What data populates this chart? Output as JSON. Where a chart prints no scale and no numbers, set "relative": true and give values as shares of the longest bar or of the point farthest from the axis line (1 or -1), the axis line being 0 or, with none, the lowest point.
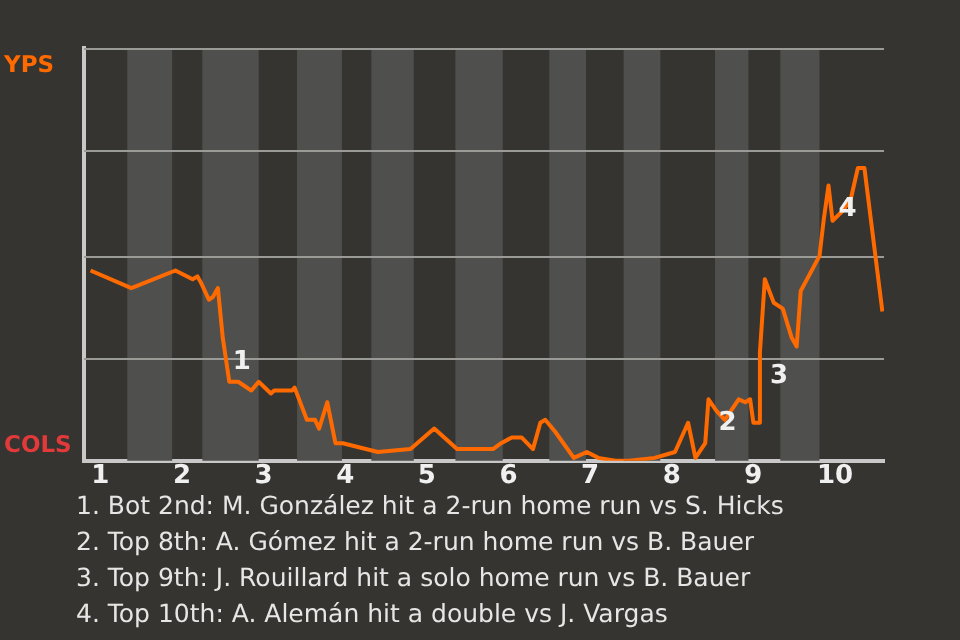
{
  "chart_data": {
    "type": "line",
    "relative": true,
    "xlim": [
      0.8,
      10.6
    ],
    "xticks": [
      1,
      2,
      3,
      4,
      5,
      6,
      7,
      8,
      9,
      10
    ],
    "ref_lines": [
      {
        "axis": "y",
        "value": 0.35,
        "color": "#9a9a96"
      },
      {
        "axis": "y",
        "value": 0.7,
        "color": "#9a9a96"
      },
      {
        "axis": "y",
        "value": 1.06,
        "color": "#9a9a96"
      },
      {
        "axis": "y",
        "value": 1.41,
        "color": "#9a9a96"
      }
    ],
    "marker": "none",
    "series": [
      {
        "color": "#ff6a00",
        "x": [
          0.88,
          1.38,
          1.92,
          2.13,
          2.19,
          2.23,
          2.33,
          2.38,
          2.44,
          2.5,
          2.58,
          2.69,
          2.85,
          2.94,
          3.09,
          3.13,
          3.35,
          3.38,
          3.53,
          3.63,
          3.68,
          3.78,
          3.88,
          3.97,
          4.4,
          4.8,
          5.09,
          5.37,
          5.51,
          5.81,
          5.91,
          6.04,
          6.16,
          6.3,
          6.39,
          6.45,
          6.57,
          6.8,
          6.96,
          7.1,
          7.31,
          7.48,
          7.79,
          8.04,
          8.2,
          8.29,
          8.41,
          8.45,
          8.55,
          8.65,
          8.82,
          8.9,
          8.96,
          9.0,
          9.06,
          9.08,
          9.14,
          9.25,
          9.36,
          9.47,
          9.53,
          9.58,
          9.81,
          9.86,
          9.92,
          9.97,
          10.08,
          10.19,
          10.28,
          10.36,
          10.58
        ],
        "values": [
          0.65,
          0.59,
          0.65,
          0.62,
          0.63,
          0.61,
          0.55,
          0.56,
          0.59,
          0.42,
          0.27,
          0.27,
          0.24,
          0.27,
          0.23,
          0.24,
          0.24,
          0.25,
          0.14,
          0.14,
          0.11,
          0.2,
          0.06,
          0.06,
          0.03,
          0.04,
          0.11,
          0.04,
          0.04,
          0.04,
          0.06,
          0.08,
          0.08,
          0.04,
          0.13,
          0.14,
          0.1,
          0.01,
          0.03,
          0.01,
          0,
          0,
          0.01,
          0.03,
          0.13,
          0.01,
          0.06,
          0.21,
          0.17,
          0.14,
          0.21,
          0.2,
          0.21,
          0.13,
          0.13,
          0.37,
          0.62,
          0.54,
          0.52,
          0.42,
          0.39,
          0.58,
          0.7,
          0.82,
          0.94,
          0.82,
          0.85,
          0.89,
          1,
          1,
          0.51
        ]
      }
    ],
    "bands": [
      {
        "axis": "x",
        "from": 1.33,
        "to": 1.88,
        "color": "#4f4f4e"
      },
      {
        "axis": "x",
        "from": 2.25,
        "to": 2.94,
        "color": "#4f4f4e"
      },
      {
        "axis": "x",
        "from": 3.41,
        "to": 3.96,
        "color": "#4f4f4e"
      },
      {
        "axis": "x",
        "from": 4.32,
        "to": 4.84,
        "color": "#4f4f4e"
      },
      {
        "axis": "x",
        "from": 5.35,
        "to": 5.93,
        "color": "#4f4f4e"
      },
      {
        "axis": "x",
        "from": 6.5,
        "to": 6.95,
        "color": "#4f4f4e"
      },
      {
        "axis": "x",
        "from": 7.41,
        "to": 7.86,
        "color": "#4f4f4e"
      },
      {
        "axis": "x",
        "from": 8.53,
        "to": 8.94,
        "color": "#4f4f4e"
      },
      {
        "axis": "x",
        "from": 9.33,
        "to": 9.81,
        "color": "#4f4f4e"
      }
    ],
    "annotations": [
      "YPS",
      "COLS",
      {
        "text": "1",
        "x": 2.5,
        "y": 0.42
      },
      {
        "text": "2",
        "x": 8.45,
        "y": 0.21
      },
      {
        "text": "3",
        "x": 9.08,
        "y": 0.37
      },
      {
        "text": "4",
        "x": 9.92,
        "y": 0.94
      },
      "1. Bot 2nd: M. González hit a 2-run home run vs S. Hicks",
      "2. Top 8th: A. Gómez hit a 2-run home run vs B. Bauer",
      "3. Top 9th: J. Rouillard hit a solo home run vs B. Bauer",
      "4. Top 10th: A. Alemán hit a double vs J. Vargas"
    ]
  }
}
